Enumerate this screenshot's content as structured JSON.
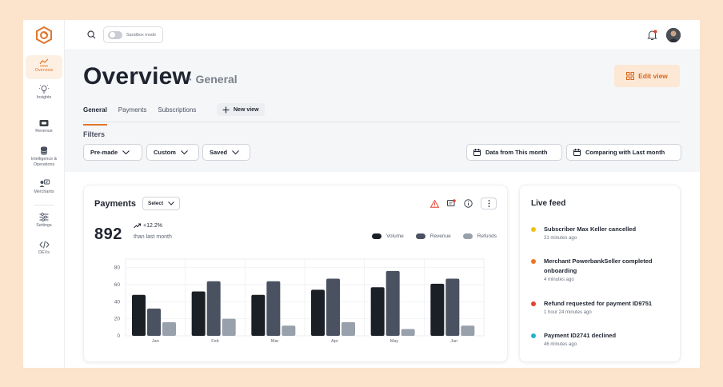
{
  "sandbox": {
    "label": "Sandbox mode"
  },
  "sidebar": {
    "items": [
      {
        "label": "Overview",
        "icon": "chart-icon",
        "active": true
      },
      {
        "label": "Insights",
        "icon": "lightbulb-icon"
      },
      {
        "label": "Revenue",
        "icon": "wallet-icon"
      },
      {
        "label": "Intelligence & Operations",
        "icon": "database-icon"
      },
      {
        "label": "Merchants",
        "icon": "merchant-icon"
      },
      {
        "label": "Settings",
        "icon": "sliders-icon"
      },
      {
        "label": "DEVs",
        "icon": "code-icon"
      }
    ]
  },
  "header": {
    "title": "Overview",
    "subtitle": "· General",
    "edit_view": "Edit view"
  },
  "tabs": {
    "items": [
      "General",
      "Payments",
      "Subscriptions"
    ],
    "new_view": "New view"
  },
  "filters": {
    "label": "Filters",
    "pre_made": "Pre-made",
    "custom": "Custom",
    "saved": "Saved",
    "date_from": "Data from This month",
    "comparing": "Comparing with Last month"
  },
  "payments": {
    "title": "Payments",
    "select": "Select",
    "total": "892",
    "growth": "+12.2%",
    "growth_sub": "than last month"
  },
  "chart_data": {
    "type": "bar",
    "categories": [
      "Jan",
      "Feb",
      "Mar",
      "Apr",
      "May",
      "Jun"
    ],
    "series": [
      {
        "name": "Volume",
        "color": "#1b1f26",
        "values": [
          48,
          52,
          48,
          54,
          57,
          61
        ]
      },
      {
        "name": "Revenue",
        "color": "#4a5160",
        "values": [
          32,
          64,
          64,
          67,
          76,
          67
        ]
      },
      {
        "name": "Refunds",
        "color": "#97a0ab",
        "values": [
          16,
          20,
          12,
          16,
          8,
          12
        ]
      }
    ],
    "yticks": [
      0,
      20,
      40,
      60,
      80
    ],
    "ylim": [
      0,
      90
    ]
  },
  "livefeed": {
    "title": "Live feed",
    "items": [
      {
        "text": "Subscriber Max Keller cancelled",
        "time": "31 minutes ago",
        "color": "#f2c014"
      },
      {
        "text": "Merchant PowerbankSeller completed onboarding",
        "time": "4 minutes ago",
        "color": "#ef7424"
      },
      {
        "text": "Refund requested for payment ID9751",
        "time": "1 hour 24 minutes ago",
        "color": "#e5412d"
      },
      {
        "text": "Payment ID2741 declined",
        "time": "46 minutes ago",
        "color": "#1fb5cc"
      }
    ]
  }
}
